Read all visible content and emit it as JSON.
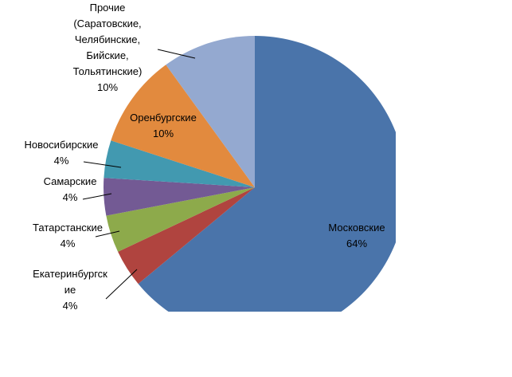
{
  "chart_data": {
    "type": "pie",
    "categories": [
      "Московские",
      "Екатеринбургск\nие",
      "Татарстанские",
      "Самарские",
      "Новосибирские",
      "Оренбургские",
      "Прочие\n(Саратовские,\nЧелябинские,\nБийские,\nТольятинские)"
    ],
    "values": [
      64,
      4,
      4,
      4,
      4,
      10,
      10
    ],
    "value_labels": [
      "64%",
      "4%",
      "4%",
      "4%",
      "4%",
      "10%",
      "10%"
    ],
    "colors": [
      "#4a74aa",
      "#b0443f",
      "#8daa4b",
      "#735a94",
      "#4299b0",
      "#e28a3e",
      "#94a9d0"
    ]
  }
}
